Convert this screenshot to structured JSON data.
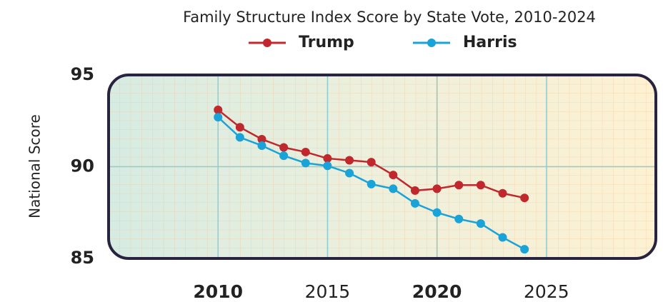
{
  "chart_data": {
    "type": "line",
    "subtitle": "Family Structure Index Score by State Vote, 2010-2024",
    "y_label": "National Score",
    "x": [
      2010,
      2011,
      2012,
      2013,
      2014,
      2015,
      2016,
      2017,
      2018,
      2019,
      2020,
      2021,
      2022,
      2023,
      2024
    ],
    "series": [
      {
        "name": "Trump",
        "color": "#c0282d",
        "values": [
          93.1,
          92.15,
          91.5,
          91.05,
          90.8,
          90.45,
          90.35,
          90.25,
          89.55,
          88.7,
          88.8,
          89.0,
          89.0,
          88.55,
          88.3
        ]
      },
      {
        "name": "Harris",
        "color": "#1aa3d9",
        "values": [
          92.7,
          91.6,
          91.15,
          90.6,
          90.2,
          90.05,
          89.65,
          89.05,
          88.8,
          88.0,
          87.5,
          87.15,
          86.9,
          86.15,
          85.5
        ]
      }
    ],
    "xlim": [
      2005,
      2030
    ],
    "xticks": [
      2010,
      2015,
      2020,
      2025
    ],
    "ylim": [
      85,
      95
    ],
    "yticks": [
      85,
      90,
      95
    ],
    "grid": true,
    "legend": "top"
  }
}
